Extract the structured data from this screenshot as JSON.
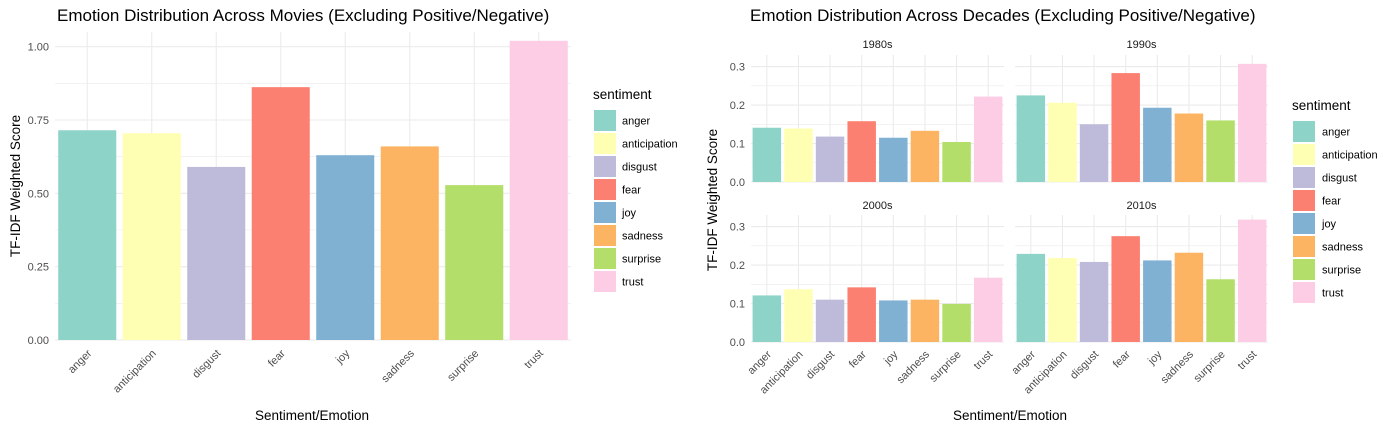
{
  "chart_data": [
    {
      "type": "bar",
      "title": "Emotion Distribution Across Movies (Excluding Positive/Negative)",
      "xlabel": "Sentiment/Emotion",
      "ylabel": "TF-IDF Weighted Score",
      "categories": [
        "anger",
        "anticipation",
        "disgust",
        "fear",
        "joy",
        "sadness",
        "surprise",
        "trust"
      ],
      "values": [
        0.715,
        0.705,
        0.59,
        0.862,
        0.63,
        0.66,
        0.528,
        1.02
      ],
      "ylim": [
        0,
        1.05
      ],
      "yticks": [
        0.0,
        0.25,
        0.5,
        0.75,
        1.0
      ],
      "ytick_labels": [
        "0.00",
        "0.25",
        "0.50",
        "0.75",
        "1.00"
      ],
      "grid": true,
      "legend": {
        "title": "sentiment",
        "position": "right",
        "entries": [
          "anger",
          "anticipation",
          "disgust",
          "fear",
          "joy",
          "sadness",
          "surprise",
          "trust"
        ]
      }
    },
    {
      "type": "bar",
      "title": "Emotion Distribution Across Decades (Excluding Positive/Negative)",
      "xlabel": "Sentiment/Emotion",
      "ylabel": "TF-IDF Weighted Score",
      "categories": [
        "anger",
        "anticipation",
        "disgust",
        "fear",
        "joy",
        "sadness",
        "surprise",
        "trust"
      ],
      "facets": [
        {
          "label": "1980s",
          "values": [
            0.141,
            0.139,
            0.118,
            0.158,
            0.115,
            0.133,
            0.104,
            0.222
          ]
        },
        {
          "label": "1990s",
          "values": [
            0.225,
            0.206,
            0.15,
            0.283,
            0.193,
            0.178,
            0.16,
            0.307
          ]
        },
        {
          "label": "2000s",
          "values": [
            0.121,
            0.137,
            0.11,
            0.142,
            0.108,
            0.11,
            0.099,
            0.167
          ]
        },
        {
          "label": "2010s",
          "values": [
            0.229,
            0.218,
            0.208,
            0.275,
            0.212,
            0.232,
            0.163,
            0.318
          ]
        }
      ],
      "ylim": [
        0,
        0.33
      ],
      "yticks": [
        0.0,
        0.1,
        0.2,
        0.3
      ],
      "ytick_labels": [
        "0.0",
        "0.1",
        "0.2",
        "0.3"
      ],
      "grid": true,
      "legend": {
        "title": "sentiment",
        "position": "right",
        "entries": [
          "anger",
          "anticipation",
          "disgust",
          "fear",
          "joy",
          "sadness",
          "surprise",
          "trust"
        ]
      }
    }
  ],
  "colors": {
    "anger": "#8DD3C7",
    "anticipation": "#FFFFB3",
    "disgust": "#BEBADA",
    "fear": "#FB8072",
    "joy": "#80B1D3",
    "sadness": "#FDB462",
    "surprise": "#B3DE69",
    "trust": "#FCCDE5",
    "grid": "#ebebeb",
    "tick_text": "#4d4d4d"
  }
}
